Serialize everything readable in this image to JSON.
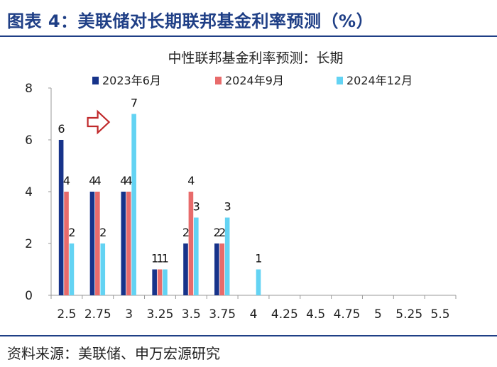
{
  "figure": {
    "title": "图表 4：美联储对长期联邦基金利率预测（%）",
    "source": "资料来源：美联储、申万宏源研究"
  },
  "colors": {
    "brand": "#1f3f86",
    "arrow": "#c0292b"
  },
  "chart_data": {
    "type": "bar",
    "title": "中性联邦基金利率预测：长期",
    "xlabel": "",
    "ylabel": "",
    "categories": [
      "2.5",
      "2.75",
      "3",
      "3.25",
      "3.5",
      "3.75",
      "4",
      "4.25",
      "4.5",
      "4.75",
      "5",
      "5.25",
      "5.5"
    ],
    "ylim": [
      0,
      8
    ],
    "yticks": [
      "0",
      "2",
      "4",
      "6",
      "8"
    ],
    "legend_position": "top",
    "grid": false,
    "series": [
      {
        "name": "2023年6月",
        "color": "#17338a",
        "values": [
          6,
          4,
          4,
          1,
          2,
          2,
          0,
          0,
          0,
          0,
          0,
          0,
          0
        ]
      },
      {
        "name": "2024年9月",
        "color": "#e86b6b",
        "values": [
          4,
          4,
          4,
          1,
          4,
          2,
          0,
          0,
          0,
          0,
          0,
          0,
          0
        ]
      },
      {
        "name": "2024年12月",
        "color": "#63d3f3",
        "values": [
          2,
          2,
          7,
          1,
          3,
          3,
          1,
          0,
          0,
          0,
          0,
          0,
          0
        ]
      }
    ],
    "annotations": [
      {
        "type": "arrow",
        "category": "3",
        "direction": "right"
      }
    ]
  }
}
